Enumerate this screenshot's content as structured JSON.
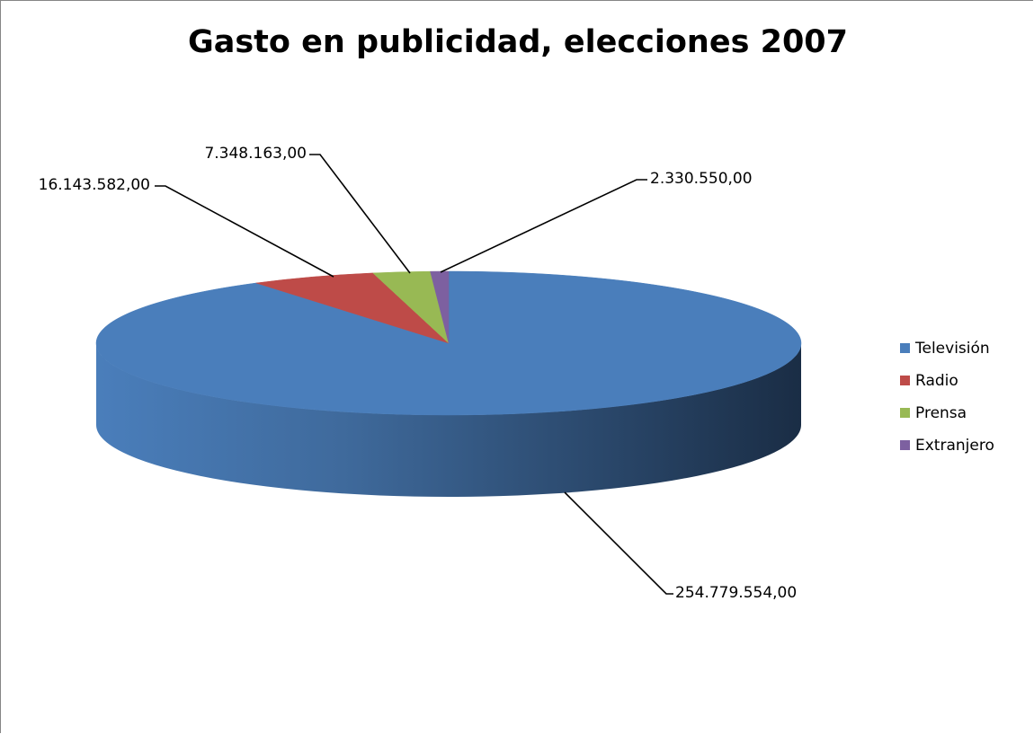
{
  "chart_data": {
    "type": "pie",
    "title": "Gasto en publicidad, elecciones 2007",
    "three_d": true,
    "legend_position": "right",
    "categories": [
      "Televisión",
      "Radio",
      "Prensa",
      "Extranjero"
    ],
    "values": [
      254779554.0,
      16143582.0,
      7348163.0,
      2330550.0
    ],
    "data_labels": [
      "254.779.554,00",
      "16.143.582,00",
      "7.348.163,00",
      "2.330.550,00"
    ],
    "colors": [
      "#4a7ebb",
      "#be4b48",
      "#98b954",
      "#7d60a0"
    ]
  }
}
